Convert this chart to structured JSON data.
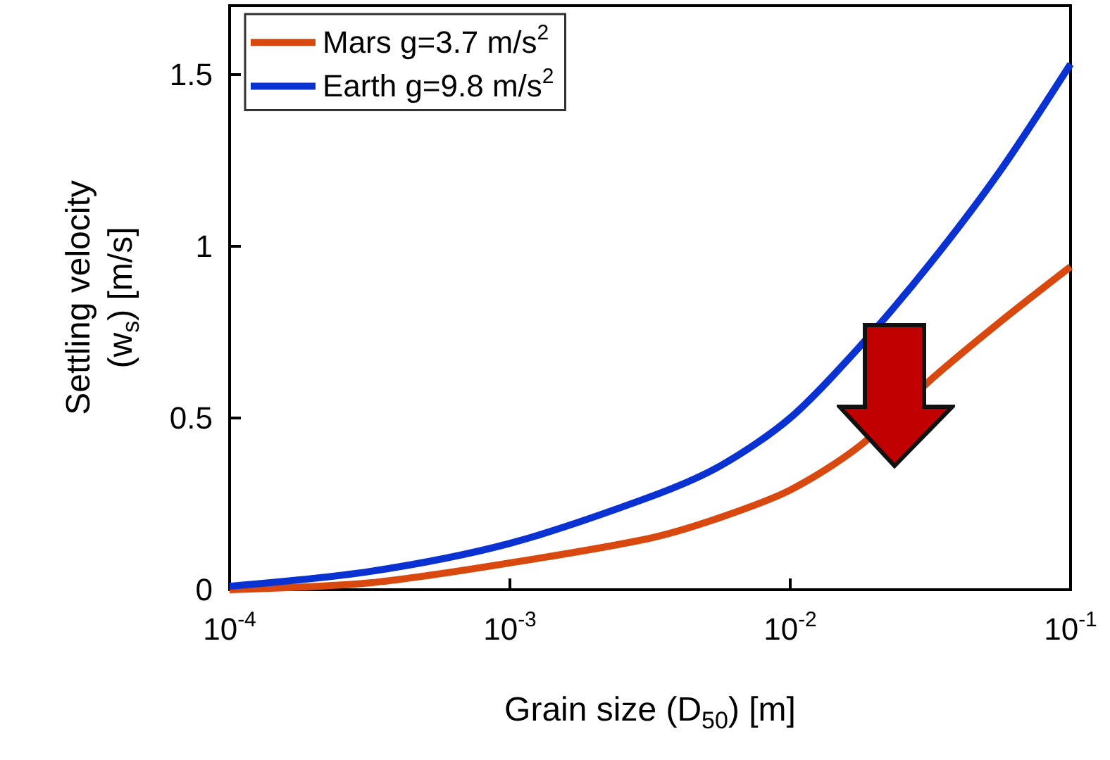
{
  "chart_data": {
    "type": "line",
    "xlabel": "Grain size (D$_{50}$) [m]",
    "ylabel": "Settling velocity\n(w$_{s}$) [m/s]",
    "x": [
      0.0001,
      0.000316,
      0.001,
      0.00316,
      0.00562,
      0.01,
      0.0178,
      0.0316,
      0.0562,
      0.1
    ],
    "series": [
      {
        "name": "Mars g=3.7 m/s$^{2}$",
        "color": "#d9480f",
        "values": [
          0.0,
          0.02,
          0.078,
          0.15,
          0.21,
          0.29,
          0.42,
          0.61,
          0.78,
          0.94
        ]
      },
      {
        "name": "Earth g=9.8 m/s$^{2}$",
        "color": "#0a32d2",
        "values": [
          0.01,
          0.053,
          0.135,
          0.27,
          0.36,
          0.5,
          0.71,
          0.95,
          1.22,
          1.53
        ]
      }
    ],
    "log": "x",
    "xlim": [
      0.0001,
      0.1
    ],
    "xticks": [
      {
        "value": 0.0001,
        "label": "10$^{-4}$"
      },
      {
        "value": 0.001,
        "label": "10$^{-3}$"
      },
      {
        "value": 0.01,
        "label": "10$^{-2}$"
      },
      {
        "value": 0.1,
        "label": "10$^{-1}$"
      }
    ],
    "ylim": [
      0,
      1.7
    ],
    "yticks": [
      0,
      0.5,
      1,
      1.5
    ],
    "legend": "top left",
    "marker": "none"
  }
}
